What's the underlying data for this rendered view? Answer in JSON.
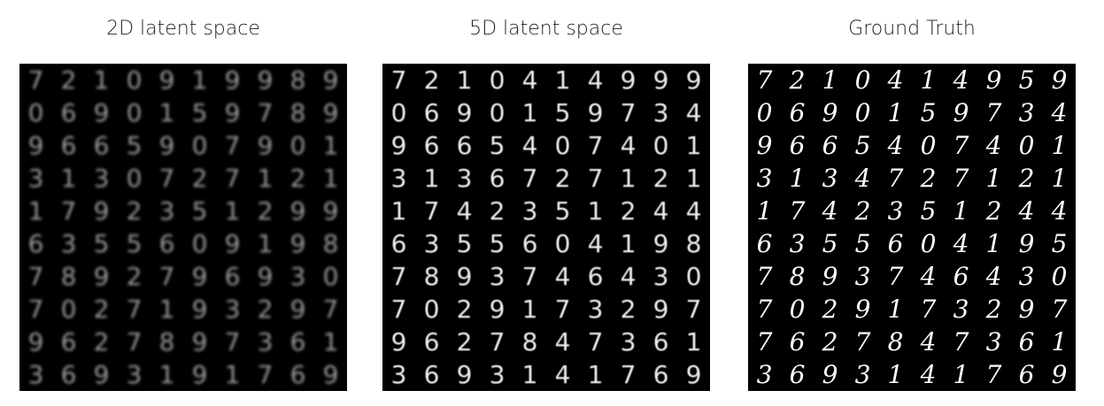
{
  "panels": [
    {
      "title": "2D latent space",
      "digits": [
        [
          "7",
          "2",
          "1",
          "0",
          "9",
          "1",
          "9",
          "9",
          "8",
          "9"
        ],
        [
          "0",
          "6",
          "9",
          "0",
          "1",
          "5",
          "9",
          "7",
          "8",
          "9"
        ],
        [
          "9",
          "6",
          "6",
          "5",
          "9",
          "0",
          "7",
          "9",
          "0",
          "1"
        ],
        [
          "3",
          "1",
          "3",
          "0",
          "7",
          "2",
          "7",
          "1",
          "2",
          "1"
        ],
        [
          "1",
          "7",
          "9",
          "2",
          "3",
          "5",
          "1",
          "2",
          "9",
          "9"
        ],
        [
          "6",
          "3",
          "5",
          "5",
          "6",
          "0",
          "9",
          "1",
          "9",
          "8"
        ],
        [
          "7",
          "8",
          "9",
          "2",
          "7",
          "9",
          "6",
          "9",
          "3",
          "0"
        ],
        [
          "7",
          "0",
          "2",
          "7",
          "1",
          "9",
          "3",
          "2",
          "9",
          "7"
        ],
        [
          "9",
          "6",
          "2",
          "7",
          "8",
          "9",
          "7",
          "3",
          "6",
          "1"
        ],
        [
          "3",
          "6",
          "9",
          "3",
          "1",
          "9",
          "1",
          "7",
          "6",
          "9"
        ]
      ]
    },
    {
      "title": "5D latent space",
      "digits": [
        [
          "7",
          "2",
          "1",
          "0",
          "4",
          "1",
          "4",
          "9",
          "9",
          "9"
        ],
        [
          "0",
          "6",
          "9",
          "0",
          "1",
          "5",
          "9",
          "7",
          "3",
          "4"
        ],
        [
          "9",
          "6",
          "6",
          "5",
          "4",
          "0",
          "7",
          "4",
          "0",
          "1"
        ],
        [
          "3",
          "1",
          "3",
          "6",
          "7",
          "2",
          "7",
          "1",
          "2",
          "1"
        ],
        [
          "1",
          "7",
          "4",
          "2",
          "3",
          "5",
          "1",
          "2",
          "4",
          "4"
        ],
        [
          "6",
          "3",
          "5",
          "5",
          "6",
          "0",
          "4",
          "1",
          "9",
          "8"
        ],
        [
          "7",
          "8",
          "9",
          "3",
          "7",
          "4",
          "6",
          "4",
          "3",
          "0"
        ],
        [
          "7",
          "0",
          "2",
          "9",
          "1",
          "7",
          "3",
          "2",
          "9",
          "7"
        ],
        [
          "9",
          "6",
          "2",
          "7",
          "8",
          "4",
          "7",
          "3",
          "6",
          "1"
        ],
        [
          "3",
          "6",
          "9",
          "3",
          "1",
          "4",
          "1",
          "7",
          "6",
          "9"
        ]
      ]
    },
    {
      "title": "Ground Truth",
      "digits": [
        [
          "7",
          "2",
          "1",
          "0",
          "4",
          "1",
          "4",
          "9",
          "5",
          "9"
        ],
        [
          "0",
          "6",
          "9",
          "0",
          "1",
          "5",
          "9",
          "7",
          "3",
          "4"
        ],
        [
          "9",
          "6",
          "6",
          "5",
          "4",
          "0",
          "7",
          "4",
          "0",
          "1"
        ],
        [
          "3",
          "1",
          "3",
          "4",
          "7",
          "2",
          "7",
          "1",
          "2",
          "1"
        ],
        [
          "1",
          "7",
          "4",
          "2",
          "3",
          "5",
          "1",
          "2",
          "4",
          "4"
        ],
        [
          "6",
          "3",
          "5",
          "5",
          "6",
          "0",
          "4",
          "1",
          "9",
          "5"
        ],
        [
          "7",
          "8",
          "9",
          "3",
          "7",
          "4",
          "6",
          "4",
          "3",
          "0"
        ],
        [
          "7",
          "0",
          "2",
          "9",
          "1",
          "7",
          "3",
          "2",
          "9",
          "7"
        ],
        [
          "7",
          "6",
          "2",
          "7",
          "8",
          "4",
          "7",
          "3",
          "6",
          "1"
        ],
        [
          "3",
          "6",
          "9",
          "3",
          "1",
          "4",
          "1",
          "7",
          "6",
          "9"
        ]
      ]
    }
  ]
}
